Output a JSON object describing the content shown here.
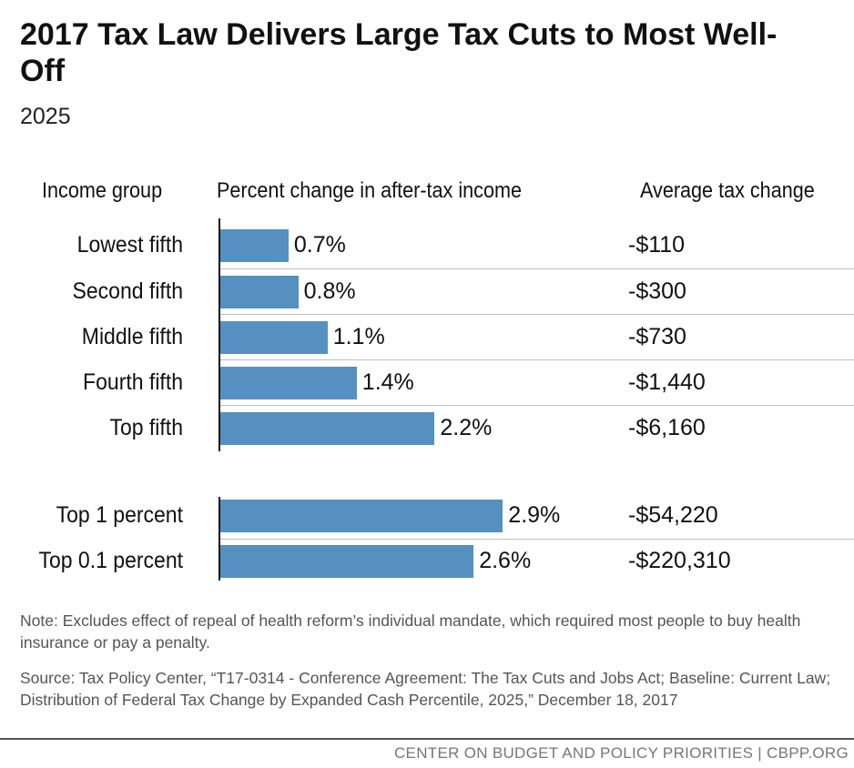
{
  "title": "2017 Tax Law Delivers Large Tax Cuts to Most Well-Off",
  "subtitle": "2025",
  "headers": {
    "group": "Income group",
    "percent": "Percent change in after-tax income",
    "tax": "Average tax change"
  },
  "chart_data": {
    "type": "bar",
    "orientation": "horizontal",
    "title": "2017 Tax Law Delivers Large Tax Cuts to Most Well-Off",
    "subtitle": "2025",
    "categories": [
      "Lowest fifth",
      "Second fifth",
      "Middle fifth",
      "Fourth fifth",
      "Top fifth",
      "Top 1 percent",
      "Top 0.1 percent"
    ],
    "values": [
      0.7,
      0.8,
      1.1,
      1.4,
      2.2,
      2.9,
      2.6
    ],
    "value_labels": [
      "0.7%",
      "0.8%",
      "1.1%",
      "1.4%",
      "2.2%",
      "2.9%",
      "2.6%"
    ],
    "tax_change": [
      "-$110",
      "-$300",
      "-$730",
      "-$1,440",
      "-$6,160",
      "-$54,220",
      "-$220,310"
    ],
    "unit": "%",
    "bar_color": "#5590c0"
  },
  "note": "Note: Excludes effect of repeal of health reform’s individual mandate, which required most people to buy health insurance or pay a penalty.",
  "source": "Source: Tax Policy Center, “T17-0314 - Conference Agreement: The Tax Cuts and Jobs Act; Baseline: Current Law; Distribution of Federal Tax Change by Expanded Cash Percentile, 2025,” December 18, 2017",
  "footer": "CENTER ON BUDGET AND POLICY PRIORITIES | CBPP.ORG"
}
